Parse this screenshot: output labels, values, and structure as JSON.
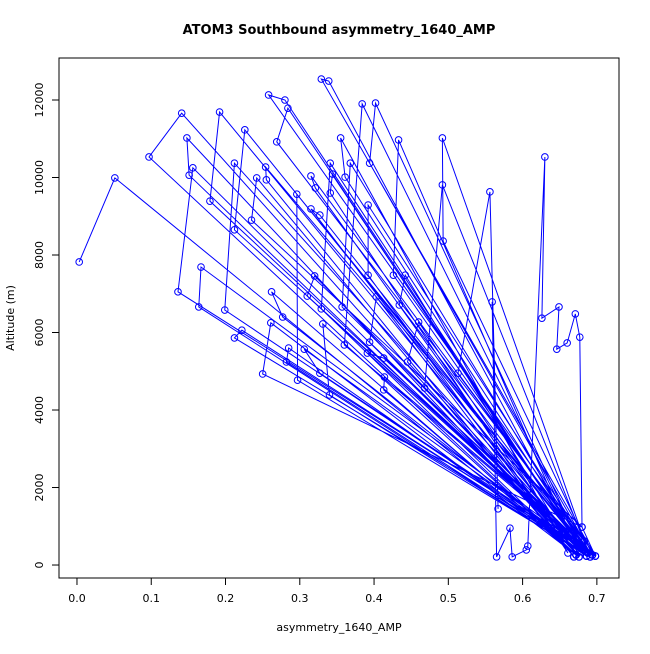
{
  "chart_data": {
    "type": "line",
    "title": "ATOM3 Southbound asymmetry_1640_AMP",
    "x_label": "asymmetry_1640_AMP",
    "y_label": "Altitude (m)",
    "x": [
      0.003,
      0.051,
      0.672,
      0.097,
      0.141,
      0.676,
      0.148,
      0.151,
      0.679,
      0.156,
      0.136,
      0.683,
      0.167,
      0.164,
      0.686,
      0.192,
      0.179,
      0.688,
      0.199,
      0.212,
      0.691,
      0.226,
      0.212,
      0.694,
      0.222,
      0.212,
      0.698,
      0.258,
      0.28,
      0.677,
      0.284,
      0.269,
      0.683,
      0.254,
      0.255,
      0.669,
      0.242,
      0.235,
      0.68,
      0.25,
      0.261,
      0.672,
      0.262,
      0.277,
      0.686,
      0.285,
      0.282,
      0.691,
      0.297,
      0.296,
      0.694,
      0.315,
      0.321,
      0.676,
      0.315,
      0.327,
      0.683,
      0.31,
      0.32,
      0.688,
      0.306,
      0.327,
      0.698,
      0.329,
      0.339,
      0.679,
      0.34,
      0.331,
      0.672,
      0.329,
      0.341,
      0.686,
      0.344,
      0.341,
      0.661,
      0.355,
      0.361,
      0.691,
      0.368,
      0.357,
      0.694,
      0.36,
      0.384,
      0.677,
      0.402,
      0.394,
      0.683,
      0.392,
      0.392,
      0.669,
      0.403,
      0.394,
      0.688,
      0.391,
      0.413,
      0.698,
      0.414,
      0.413,
      0.676,
      0.433,
      0.426,
      0.683,
      0.434,
      0.442,
      0.672,
      0.46,
      0.445,
      0.686,
      0.468,
      0.492,
      0.691,
      0.492,
      0.493,
      0.694,
      0.513,
      0.556,
      0.567,
      0.559,
      0.565,
      0.583,
      0.586,
      0.605,
      0.607,
      0.63,
      0.626,
      0.649,
      0.646,
      0.66,
      0.671,
      0.677,
      0.68,
      0.698
    ],
    "series": [
      {
        "color": "#0000ff",
        "values": [
          7820,
          9990,
          260,
          10530,
          11660,
          210,
          11020,
          10060,
          340,
          10250,
          7050,
          410,
          7690,
          6660,
          230,
          11690,
          9390,
          310,
          6580,
          10370,
          210,
          11230,
          8650,
          260,
          6060,
          5860,
          230,
          12130,
          12000,
          520,
          11790,
          10920,
          620,
          10270,
          9940,
          210,
          9990,
          8900,
          980,
          4930,
          6250,
          260,
          7050,
          6400,
          230,
          5600,
          5240,
          210,
          4770,
          9570,
          260,
          10040,
          9730,
          210,
          9190,
          9030,
          410,
          6940,
          7460,
          310,
          5570,
          4950,
          230,
          12540,
          12490,
          340,
          4390,
          6220,
          260,
          6610,
          10370,
          230,
          10090,
          9600,
          310,
          11020,
          10010,
          210,
          10370,
          6660,
          260,
          5680,
          11900,
          520,
          11920,
          10370,
          620,
          9290,
          7480,
          210,
          6920,
          5750,
          310,
          5470,
          5340,
          230,
          4850,
          4520,
          210,
          10970,
          7480,
          410,
          6710,
          7480,
          260,
          6270,
          5240,
          230,
          4570,
          9810,
          210,
          11020,
          8360,
          260,
          4950,
          9630,
          1450,
          6790,
          210,
          950,
          210,
          390,
          490,
          10530,
          6370,
          6660,
          5570,
          5730,
          6480,
          5880,
          980,
          230
        ]
      }
    ],
    "markers": true,
    "xlim": [
      -0.0242,
      0.7298
    ],
    "ylim": [
      -335,
      13084
    ],
    "xticks": [
      {
        "value": 0,
        "label": "0.0"
      },
      0.1,
      0.2,
      0.3,
      0.4,
      0.5,
      0.6,
      0.7
    ],
    "yticks": [
      0,
      2000,
      4000,
      6000,
      8000,
      10000,
      12000
    ]
  }
}
